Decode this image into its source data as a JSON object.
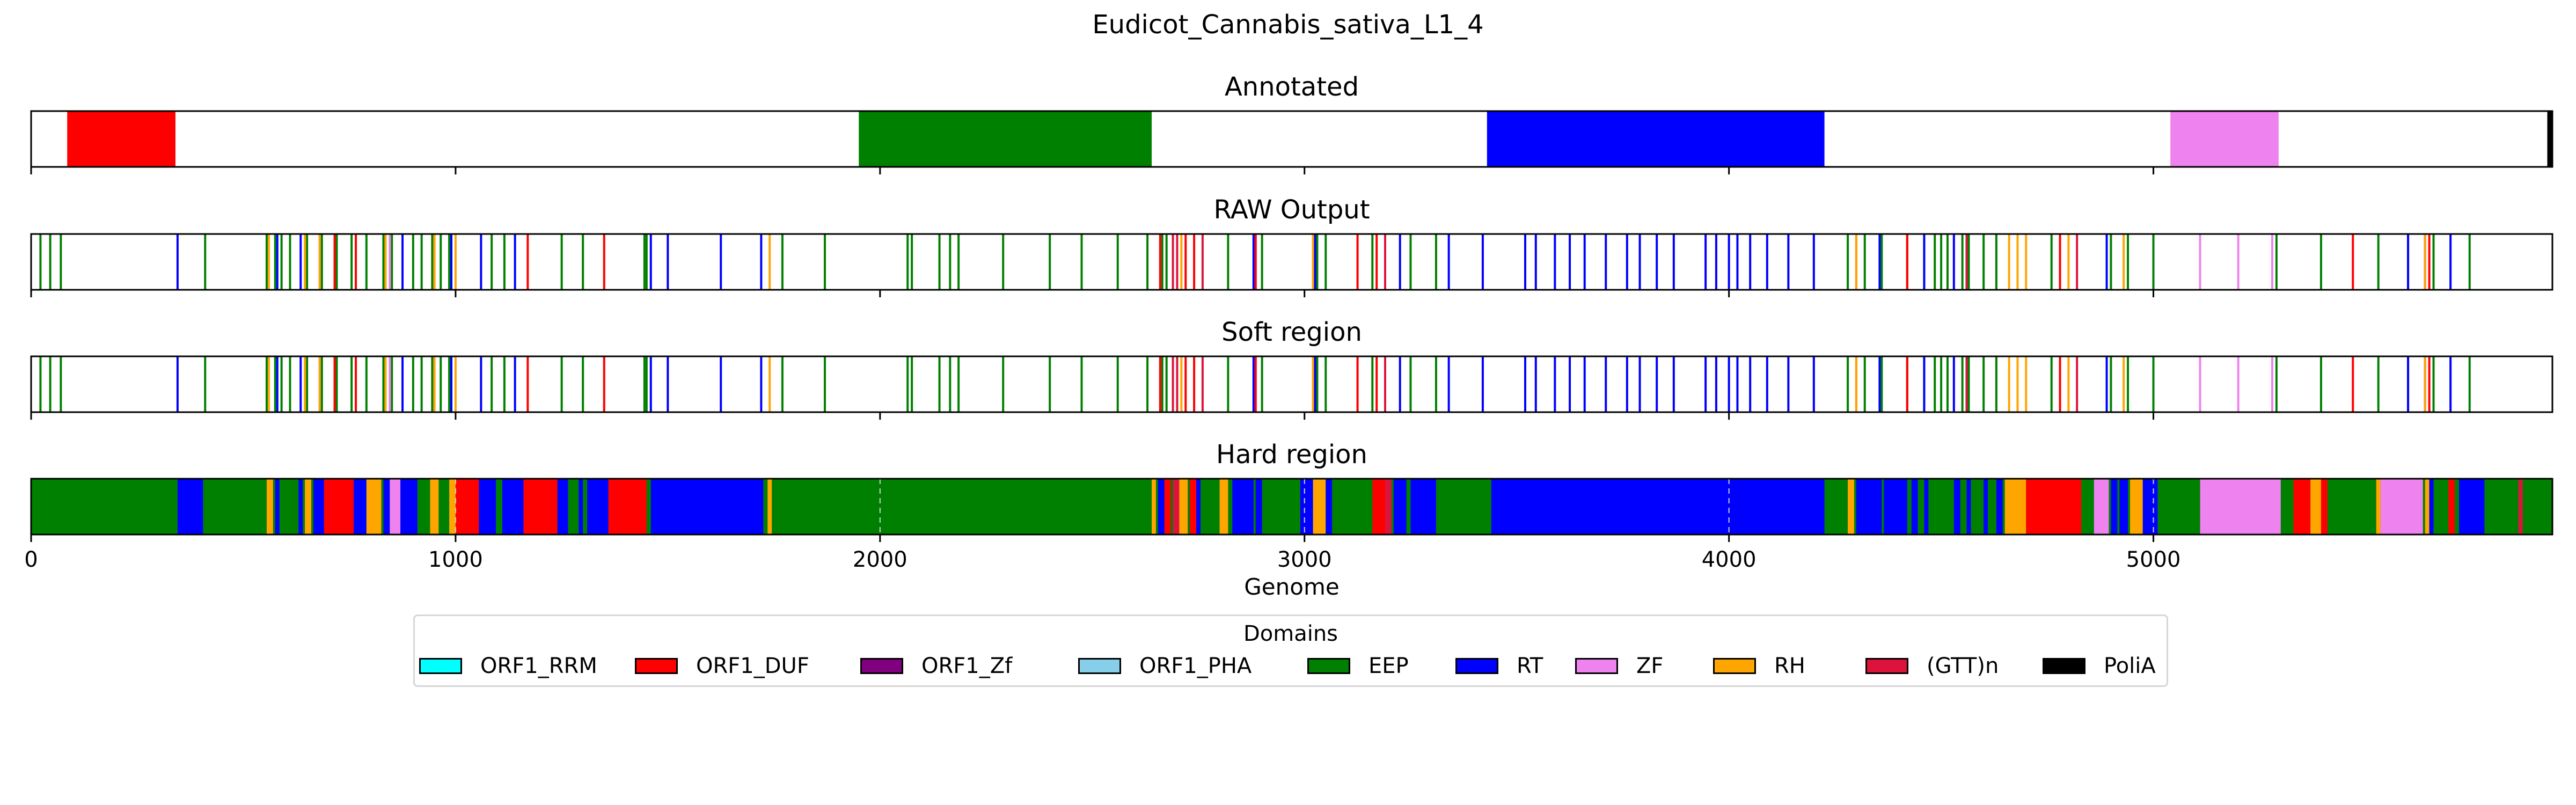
{
  "chart_data": {
    "type": "bar",
    "title": "Eudicot_Cannabis_sativa_L1_4",
    "xlabel": "Genome",
    "xlim": [
      0,
      5940
    ],
    "x_ticks": [
      0,
      1000,
      2000,
      3000,
      4000,
      5000
    ],
    "grid": "vertical dashed lines on Hard region panel",
    "legend": {
      "title": "Domains",
      "placement": "bottom-center",
      "items": [
        {
          "name": "ORF1_RRM",
          "color": "#00ffff"
        },
        {
          "name": "ORF1_DUF",
          "color": "#ff0000"
        },
        {
          "name": "ORF1_Zf",
          "color": "#800080"
        },
        {
          "name": "ORF1_PHA",
          "color": "#87ceeb"
        },
        {
          "name": "EEP",
          "color": "#008000"
        },
        {
          "name": "RT",
          "color": "#0000ff"
        },
        {
          "name": "ZF",
          "color": "#ee82ee"
        },
        {
          "name": "RH",
          "color": "#ffa500"
        },
        {
          "name": "(GTT)n",
          "color": "#dc143c"
        },
        {
          "name": "PoliA",
          "color": "#000000"
        }
      ]
    },
    "panels": [
      {
        "title": "Annotated",
        "kind": "segments",
        "segments": [
          {
            "start": 85,
            "end": 340,
            "domain": "ORF1_DUF"
          },
          {
            "start": 1950,
            "end": 2640,
            "domain": "EEP"
          },
          {
            "start": 3430,
            "end": 4225,
            "domain": "RT"
          },
          {
            "start": 5040,
            "end": 5295,
            "domain": "ZF"
          },
          {
            "start": 5928,
            "end": 5940,
            "domain": "PoliA"
          }
        ]
      },
      {
        "title": "RAW Output",
        "kind": "lines",
        "lines": [
          {
            "domain": "EEP",
            "x": [
              22,
              45,
              70,
              410,
              555,
              575,
              590,
              610,
              650,
              685,
              720,
              755,
              790,
              830,
              850,
              900,
              920,
              945,
              965,
              985,
              1085,
              1115,
              1250,
              1300,
              1445,
              1450,
              1770,
              1870,
              2065,
              2075,
              2140,
              2165,
              2185,
              2290,
              2400,
              2475,
              2560,
              2630,
              2665,
              2675,
              2820,
              2900,
              3030,
              3050,
              3160,
              3250,
              3310,
              4280,
              4320,
              4360,
              4420,
              4460,
              4485,
              4500,
              4515,
              4550,
              4565,
              4600,
              4630,
              4760,
              4900,
              4940,
              5000,
              5290,
              5395,
              5530,
              5600,
              5660,
              5745
            ]
          },
          {
            "domain": "RT",
            "x": [
              345,
              580,
              635,
              680,
              875,
              990,
              1060,
              1140,
              1460,
              1500,
              1625,
              1720,
              2880,
              3025,
              3225,
              3340,
              3420,
              3520,
              3545,
              3590,
              3625,
              3660,
              3710,
              3760,
              3790,
              3830,
              3870,
              3945,
              3970,
              4000,
              4020,
              4050,
              4090,
              4140,
              4200,
              4355,
              4460,
              4530,
              4560,
              4890,
              5600,
              5640,
              5700
            ]
          },
          {
            "domain": "ORF1_DUF",
            "x": [
              715,
              765,
              950,
              1170,
              1350,
              2660,
              2720,
              2740,
              2885,
              3125,
              3170,
              4300,
              4420,
              4780,
              5470,
              5650
            ]
          },
          {
            "domain": "RH",
            "x": [
              560,
              645,
              680,
              835,
              950,
              1000,
              1740,
              2710,
              3020,
              4300,
              4660,
              4680,
              4700,
              4800,
              4930,
              5640
            ]
          },
          {
            "domain": "ZF",
            "x": [
              845,
              5110,
              5200,
              5280
            ]
          },
          {
            "domain": "(GTT)n",
            "x": [
              2690,
              2700,
              2760,
              3190,
              4560,
              4820
            ]
          }
        ]
      },
      {
        "title": "Soft region",
        "kind": "lines",
        "lines": [
          {
            "domain": "EEP",
            "x": [
              22,
              45,
              70,
              410,
              555,
              575,
              590,
              610,
              650,
              685,
              720,
              755,
              790,
              830,
              850,
              900,
              920,
              945,
              965,
              985,
              1085,
              1115,
              1250,
              1300,
              1445,
              1450,
              1770,
              1870,
              2065,
              2075,
              2140,
              2165,
              2185,
              2290,
              2400,
              2475,
              2560,
              2630,
              2665,
              2675,
              2820,
              2900,
              3030,
              3050,
              3160,
              3250,
              3310,
              4280,
              4320,
              4360,
              4420,
              4460,
              4485,
              4500,
              4515,
              4550,
              4565,
              4600,
              4630,
              4760,
              4900,
              4940,
              5000,
              5290,
              5395,
              5530,
              5600,
              5660,
              5745
            ]
          },
          {
            "domain": "RT",
            "x": [
              345,
              580,
              635,
              680,
              875,
              990,
              1060,
              1140,
              1460,
              1500,
              1625,
              1720,
              2880,
              3025,
              3225,
              3340,
              3420,
              3520,
              3545,
              3590,
              3625,
              3660,
              3710,
              3760,
              3790,
              3830,
              3870,
              3945,
              3970,
              4000,
              4020,
              4050,
              4090,
              4140,
              4200,
              4355,
              4460,
              4530,
              4560,
              4890,
              5600,
              5640,
              5700
            ]
          },
          {
            "domain": "ORF1_DUF",
            "x": [
              715,
              765,
              950,
              1170,
              1350,
              2660,
              2720,
              2740,
              2885,
              3125,
              3170,
              4300,
              4420,
              4780,
              5470,
              5650
            ]
          },
          {
            "domain": "RH",
            "x": [
              560,
              645,
              680,
              835,
              950,
              1000,
              1740,
              2710,
              3020,
              4300,
              4660,
              4680,
              4700,
              4800,
              4930,
              5640
            ]
          },
          {
            "domain": "ZF",
            "x": [
              845,
              5110,
              5200,
              5280
            ]
          },
          {
            "domain": "(GTT)n",
            "x": [
              2690,
              2700,
              2760,
              3190,
              4560,
              4820
            ]
          }
        ]
      },
      {
        "title": "Hard region",
        "kind": "segments",
        "segments": [
          {
            "start": 0,
            "end": 5940,
            "domain": "EEP"
          },
          {
            "start": 345,
            "end": 405,
            "domain": "RT"
          },
          {
            "start": 555,
            "end": 570,
            "domain": "RH"
          },
          {
            "start": 575,
            "end": 585,
            "domain": "RT"
          },
          {
            "start": 630,
            "end": 640,
            "domain": "RT"
          },
          {
            "start": 645,
            "end": 660,
            "domain": "RH"
          },
          {
            "start": 665,
            "end": 690,
            "domain": "RT"
          },
          {
            "start": 690,
            "end": 760,
            "domain": "ORF1_DUF"
          },
          {
            "start": 760,
            "end": 790,
            "domain": "RT"
          },
          {
            "start": 790,
            "end": 825,
            "domain": "RH"
          },
          {
            "start": 830,
            "end": 845,
            "domain": "RT"
          },
          {
            "start": 845,
            "end": 870,
            "domain": "ZF"
          },
          {
            "start": 870,
            "end": 910,
            "domain": "RT"
          },
          {
            "start": 940,
            "end": 960,
            "domain": "RH"
          },
          {
            "start": 985,
            "end": 1000,
            "domain": "RH"
          },
          {
            "start": 1000,
            "end": 1055,
            "domain": "ORF1_DUF"
          },
          {
            "start": 1055,
            "end": 1095,
            "domain": "RT"
          },
          {
            "start": 1110,
            "end": 1160,
            "domain": "RT"
          },
          {
            "start": 1160,
            "end": 1240,
            "domain": "ORF1_DUF"
          },
          {
            "start": 1240,
            "end": 1265,
            "domain": "RT"
          },
          {
            "start": 1290,
            "end": 1300,
            "domain": "RT"
          },
          {
            "start": 1310,
            "end": 1360,
            "domain": "RT"
          },
          {
            "start": 1360,
            "end": 1450,
            "domain": "ORF1_DUF"
          },
          {
            "start": 1460,
            "end": 1725,
            "domain": "RT"
          },
          {
            "start": 1735,
            "end": 1745,
            "domain": "RH"
          },
          {
            "start": 2640,
            "end": 2650,
            "domain": "RH"
          },
          {
            "start": 2655,
            "end": 2670,
            "domain": "RT"
          },
          {
            "start": 2670,
            "end": 2685,
            "domain": "ORF1_DUF"
          },
          {
            "start": 2690,
            "end": 2705,
            "domain": "(GTT)n"
          },
          {
            "start": 2705,
            "end": 2725,
            "domain": "RH"
          },
          {
            "start": 2730,
            "end": 2745,
            "domain": "ORF1_DUF"
          },
          {
            "start": 2745,
            "end": 2755,
            "domain": "RT"
          },
          {
            "start": 2800,
            "end": 2820,
            "domain": "RH"
          },
          {
            "start": 2830,
            "end": 2880,
            "domain": "RT"
          },
          {
            "start": 2885,
            "end": 2900,
            "domain": "RT"
          },
          {
            "start": 2990,
            "end": 3020,
            "domain": "RT"
          },
          {
            "start": 3020,
            "end": 3050,
            "domain": "RH"
          },
          {
            "start": 3050,
            "end": 3065,
            "domain": "RT"
          },
          {
            "start": 3160,
            "end": 3190,
            "domain": "ORF1_DUF"
          },
          {
            "start": 3190,
            "end": 3205,
            "domain": "(GTT)n"
          },
          {
            "start": 3210,
            "end": 3240,
            "domain": "RT"
          },
          {
            "start": 3250,
            "end": 3310,
            "domain": "RT"
          },
          {
            "start": 3440,
            "end": 4225,
            "domain": "RT"
          },
          {
            "start": 4280,
            "end": 4295,
            "domain": "RH"
          },
          {
            "start": 4300,
            "end": 4360,
            "domain": "RT"
          },
          {
            "start": 4365,
            "end": 4420,
            "domain": "RT"
          },
          {
            "start": 4430,
            "end": 4445,
            "domain": "RT"
          },
          {
            "start": 4460,
            "end": 4470,
            "domain": "RT"
          },
          {
            "start": 4530,
            "end": 4545,
            "domain": "RT"
          },
          {
            "start": 4560,
            "end": 4570,
            "domain": "RT"
          },
          {
            "start": 4600,
            "end": 4610,
            "domain": "RT"
          },
          {
            "start": 4630,
            "end": 4645,
            "domain": "RT"
          },
          {
            "start": 4650,
            "end": 4700,
            "domain": "RH"
          },
          {
            "start": 4700,
            "end": 4830,
            "domain": "ORF1_DUF"
          },
          {
            "start": 4860,
            "end": 4895,
            "domain": "ZF"
          },
          {
            "start": 4900,
            "end": 4915,
            "domain": "RT"
          },
          {
            "start": 4920,
            "end": 4940,
            "domain": "RT"
          },
          {
            "start": 4945,
            "end": 4975,
            "domain": "RH"
          },
          {
            "start": 4975,
            "end": 5010,
            "domain": "RT"
          },
          {
            "start": 5110,
            "end": 5300,
            "domain": "ZF"
          },
          {
            "start": 5330,
            "end": 5370,
            "domain": "ORF1_DUF"
          },
          {
            "start": 5370,
            "end": 5395,
            "domain": "RH"
          },
          {
            "start": 5395,
            "end": 5410,
            "domain": "ORF1_DUF"
          },
          {
            "start": 5525,
            "end": 5535,
            "domain": "RH"
          },
          {
            "start": 5535,
            "end": 5635,
            "domain": "ZF"
          },
          {
            "start": 5640,
            "end": 5650,
            "domain": "RH"
          },
          {
            "start": 5650,
            "end": 5660,
            "domain": "RT"
          },
          {
            "start": 5695,
            "end": 5710,
            "domain": "ORF1_DUF"
          },
          {
            "start": 5720,
            "end": 5780,
            "domain": "RT"
          },
          {
            "start": 5860,
            "end": 5870,
            "domain": "(GTT)n"
          }
        ]
      }
    ]
  }
}
